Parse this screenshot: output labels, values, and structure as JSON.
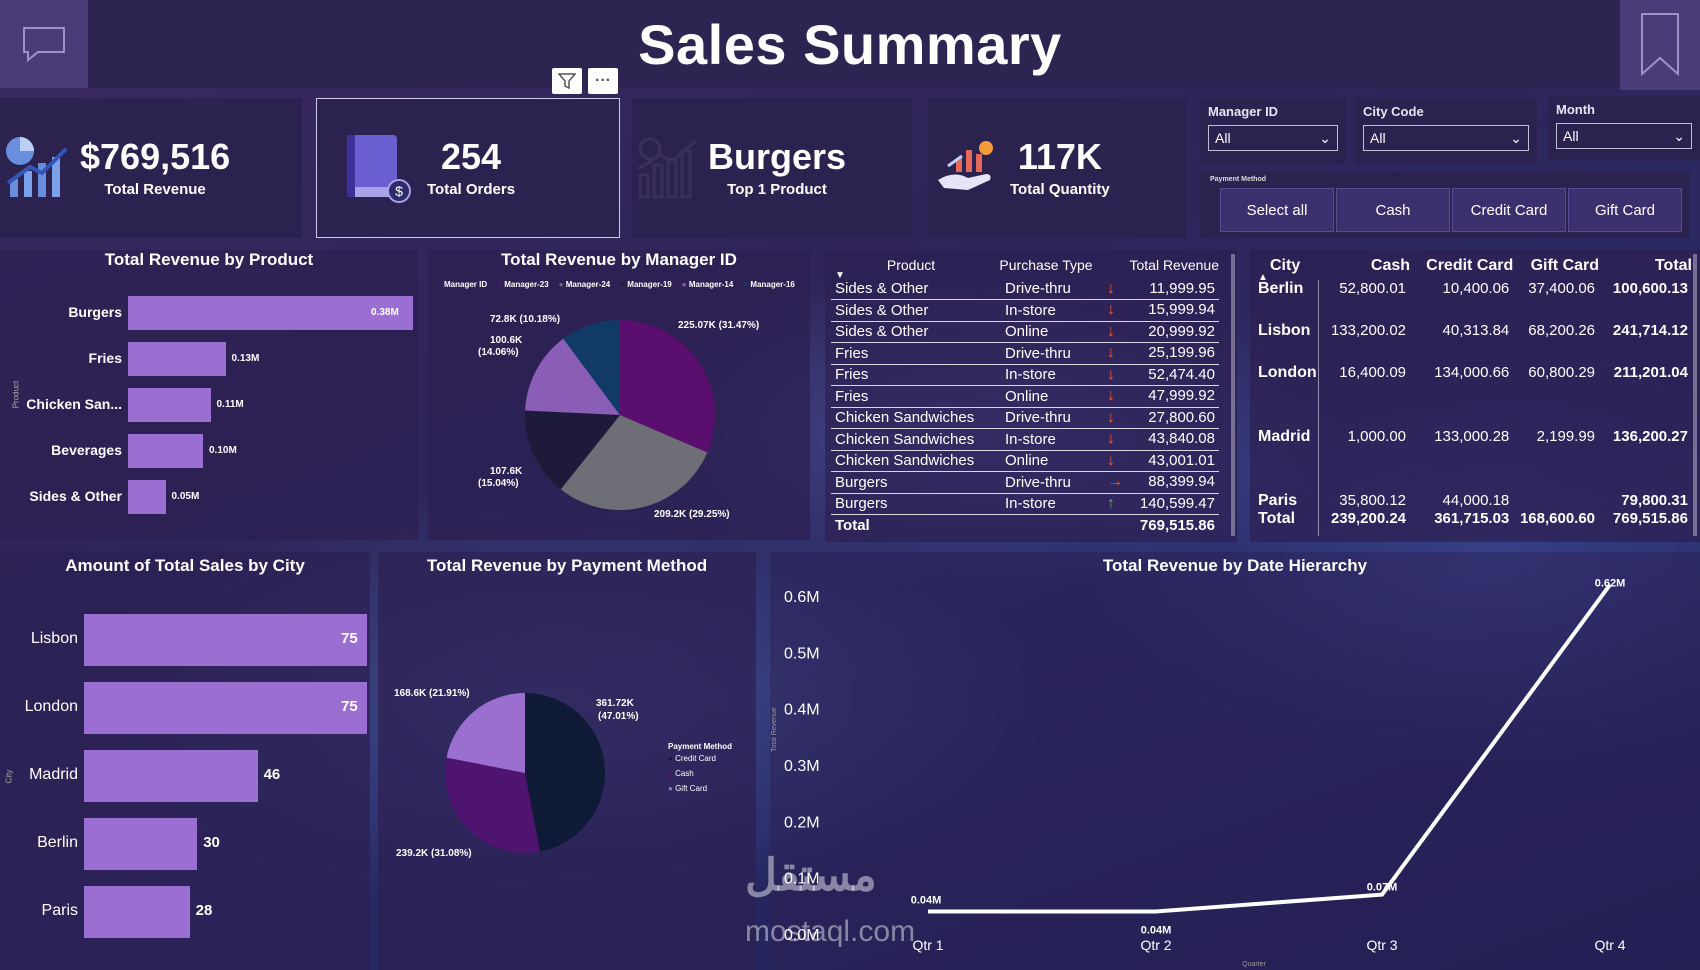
{
  "header": {
    "title": "Sales Summary"
  },
  "kpis": [
    {
      "value": "$769,516",
      "label": "Total Revenue",
      "icon": "revenue-chart-icon"
    },
    {
      "value": "254",
      "label": "Total Orders",
      "icon": "book-dollar-icon"
    },
    {
      "value": "Burgers",
      "label": "Top 1 Product",
      "icon": "growth-chart-icon"
    },
    {
      "value": "117K",
      "label": "Total Quantity",
      "icon": "hand-chart-icon"
    }
  ],
  "slicers": {
    "manager": {
      "title": "Manager ID",
      "value": "All"
    },
    "city": {
      "title": "City Code",
      "value": "All"
    },
    "month": {
      "title": "Month",
      "value": "All"
    },
    "payment": {
      "title": "Payment Method",
      "options": [
        "Select all",
        "Cash",
        "Credit Card",
        "Gift Card"
      ]
    }
  },
  "revenue_by_product": {
    "title": "Total Revenue by Product",
    "axis_label": "Product",
    "rows": [
      {
        "label": "Burgers",
        "value": 0.38,
        "text": "0.38M"
      },
      {
        "label": "Fries",
        "value": 0.13,
        "text": "0.13M"
      },
      {
        "label": "Chicken San...",
        "value": 0.11,
        "text": "0.11M"
      },
      {
        "label": "Beverages",
        "value": 0.1,
        "text": "0.10M"
      },
      {
        "label": "Sides & Other",
        "value": 0.05,
        "text": "0.05M"
      }
    ]
  },
  "revenue_by_manager": {
    "title": "Total Revenue by Manager ID",
    "legend_title": "Manager ID",
    "legend": [
      {
        "name": "Manager-23",
        "color": "#5a0f6e"
      },
      {
        "name": "Manager-24",
        "color": "#6e6e76"
      },
      {
        "name": "Manager-19",
        "color": "#1e1a3a"
      },
      {
        "name": "Manager-14",
        "color": "#8a5db6"
      },
      {
        "name": "Manager-16",
        "color": "#123a66"
      }
    ],
    "slices": [
      {
        "value": 225.07,
        "pct": 31.47,
        "color": "#5a0f6e",
        "label": "225.07K (31.47%)"
      },
      {
        "value": 209.2,
        "pct": 29.25,
        "color": "#6e6e76",
        "label": "209.2K (29.25%)"
      },
      {
        "value": 107.6,
        "pct": 15.04,
        "color": "#1e1a3a",
        "label": "107.6K (15.04%)"
      },
      {
        "value": 100.6,
        "pct": 14.06,
        "color": "#8a5db6",
        "label": "100.6K (14.06%)"
      },
      {
        "value": 72.8,
        "pct": 10.18,
        "color": "#123a66",
        "label": "72.8K (10.18%)"
      }
    ]
  },
  "product_table": {
    "headers": [
      "Product",
      "Purchase Type",
      "Total Revenue"
    ],
    "rows": [
      {
        "product": "Sides & Other",
        "type": "Drive-thru",
        "trend": "down",
        "revenue": "11,999.95"
      },
      {
        "product": "Sides & Other",
        "type": "In-store",
        "trend": "down",
        "revenue": "15,999.94"
      },
      {
        "product": "Sides & Other",
        "type": "Online",
        "trend": "down",
        "revenue": "20,999.92"
      },
      {
        "product": "Fries",
        "type": "Drive-thru",
        "trend": "down",
        "revenue": "25,199.96"
      },
      {
        "product": "Fries",
        "type": "In-store",
        "trend": "down",
        "revenue": "52,474.40"
      },
      {
        "product": "Fries",
        "type": "Online",
        "trend": "down",
        "revenue": "47,999.92"
      },
      {
        "product": "Chicken Sandwiches",
        "type": "Drive-thru",
        "trend": "down",
        "revenue": "27,800.60"
      },
      {
        "product": "Chicken Sandwiches",
        "type": "In-store",
        "trend": "down",
        "revenue": "43,840.08"
      },
      {
        "product": "Chicken Sandwiches",
        "type": "Online",
        "trend": "down",
        "revenue": "43,001.01"
      },
      {
        "product": "Burgers",
        "type": "Drive-thru",
        "trend": "right",
        "revenue": "88,399.94"
      },
      {
        "product": "Burgers",
        "type": "In-store",
        "trend": "up",
        "revenue": "140,599.47"
      }
    ],
    "total_label": "Total",
    "total_value": "769,515.86"
  },
  "city_table": {
    "headers": [
      "City",
      "Cash",
      "Credit Card",
      "Gift Card",
      "Total"
    ],
    "rows": [
      {
        "city": "Berlin",
        "cash": "52,800.01",
        "credit": "10,400.06",
        "gift": "37,400.06",
        "total": "100,600.13"
      },
      {
        "city": "Lisbon",
        "cash": "133,200.02",
        "credit": "40,313.84",
        "gift": "68,200.26",
        "total": "241,714.12"
      },
      {
        "city": "London",
        "cash": "16,400.09",
        "credit": "134,000.66",
        "gift": "60,800.29",
        "total": "211,201.04"
      },
      {
        "city": "Madrid",
        "cash": "1,000.00",
        "credit": "133,000.28",
        "gift": "2,199.99",
        "total": "136,200.27"
      },
      {
        "city": "Paris",
        "cash": "35,800.12",
        "credit": "44,000.18",
        "gift": "",
        "total": "79,800.31"
      }
    ],
    "total": {
      "city": "Total",
      "cash": "239,200.24",
      "credit": "361,715.03",
      "gift": "168,600.60",
      "total": "769,515.86"
    }
  },
  "sales_by_city": {
    "title": "Amount of Total Sales by City",
    "axis_label": "City",
    "rows": [
      {
        "label": "Lisbon",
        "value": 75
      },
      {
        "label": "London",
        "value": 75
      },
      {
        "label": "Madrid",
        "value": 46
      },
      {
        "label": "Berlin",
        "value": 30
      },
      {
        "label": "Paris",
        "value": 28
      }
    ]
  },
  "revenue_by_payment": {
    "title": "Total Revenue by Payment Method",
    "legend_title": "Payment Method",
    "legend": [
      {
        "name": "Credit Card",
        "color": "#0f1a36"
      },
      {
        "name": "Cash",
        "color": "#4e1470"
      },
      {
        "name": "Gift Card",
        "color": "#9a6fd0"
      }
    ],
    "slices": [
      {
        "value": 361.72,
        "pct": 47.01,
        "color": "#0f1a36",
        "label1": "361.72K",
        "label2": "(47.01%)"
      },
      {
        "value": 239.2,
        "pct": 31.08,
        "color": "#4e1470",
        "label1": "239.2K (31.08%)",
        "label2": ""
      },
      {
        "value": 168.6,
        "pct": 21.91,
        "color": "#9a6fd0",
        "label1": "168.6K (21.91%)",
        "label2": ""
      }
    ]
  },
  "revenue_by_date": {
    "title": "Total Revenue by Date Hierarchy",
    "y_ticks": [
      "0.0M",
      "0.1M",
      "0.2M",
      "0.3M",
      "0.4M",
      "0.5M",
      "0.6M"
    ],
    "x_axis_label": "Quarter",
    "y_axis_label": "Total Revenue"
  },
  "chart_data": {
    "type": "line",
    "title": "Total Revenue by Date Hierarchy",
    "xlabel": "Quarter",
    "ylabel": "Total Revenue",
    "categories": [
      "Qtr 1",
      "Qtr 2",
      "Qtr 3",
      "Qtr 4"
    ],
    "values": [
      0.04,
      0.04,
      0.07,
      0.62
    ],
    "labels": [
      "0.04M",
      "0.04M",
      "0.07M",
      "0.62M"
    ],
    "ylim": [
      0,
      0.6
    ],
    "unit": "M"
  },
  "watermark": {
    "arabic": "مستقل",
    "latin": "mostaql.com"
  }
}
